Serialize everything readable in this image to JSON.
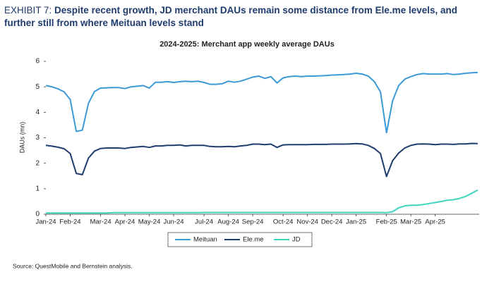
{
  "exhibit": "EXHIBIT 7:",
  "headline": "Despite recent growth, JD merchant DAUs remain some distance from Ele.me levels, and further still from where Meituan levels stand",
  "source": "Source: QuestMobile and Bernstein analysis.",
  "chart_data": {
    "type": "line",
    "title": "2024-2025: Merchant app weekly average DAUs",
    "y_label": "DAUs (mn)",
    "categories": [
      "Jan-24",
      null,
      null,
      null,
      "Feb-24",
      null,
      null,
      null,
      null,
      "Mar-24",
      null,
      null,
      null,
      "Apr-24",
      null,
      null,
      null,
      "May-24",
      null,
      null,
      null,
      "Jun-24",
      null,
      null,
      null,
      null,
      "Jul-24",
      null,
      null,
      null,
      "Aug-24",
      null,
      null,
      null,
      "Sep-24",
      null,
      null,
      null,
      null,
      "Oct-24",
      null,
      null,
      null,
      "Nov-24",
      null,
      null,
      null,
      "Dec-24",
      null,
      null,
      null,
      "Jan-25",
      null,
      null,
      null,
      null,
      "Feb-25",
      null,
      null,
      null,
      "Mar-25",
      null,
      null,
      null,
      "Apr-25",
      null,
      null,
      null,
      null,
      null,
      null,
      null
    ],
    "series": [
      {
        "name": "Meituan",
        "color": "#3a9ad6",
        "values": [
          5.05,
          5.0,
          4.92,
          4.8,
          4.5,
          3.25,
          3.3,
          4.35,
          4.82,
          4.95,
          4.96,
          4.97,
          4.97,
          4.93,
          5.0,
          5.02,
          5.05,
          4.95,
          5.18,
          5.18,
          5.2,
          5.17,
          5.2,
          5.22,
          5.2,
          5.22,
          5.17,
          5.1,
          5.1,
          5.12,
          5.22,
          5.18,
          5.22,
          5.3,
          5.38,
          5.42,
          5.33,
          5.4,
          5.15,
          5.35,
          5.4,
          5.42,
          5.4,
          5.42,
          5.42,
          5.43,
          5.44,
          5.46,
          5.47,
          5.48,
          5.5,
          5.53,
          5.5,
          5.42,
          5.2,
          4.8,
          3.2,
          4.45,
          5.05,
          5.3,
          5.4,
          5.48,
          5.52,
          5.5,
          5.5,
          5.5,
          5.52,
          5.48,
          5.5,
          5.53,
          5.55,
          5.56
        ]
      },
      {
        "name": "Ele.me",
        "color": "#1f3c6e",
        "values": [
          2.7,
          2.67,
          2.63,
          2.57,
          2.38,
          1.6,
          1.55,
          2.2,
          2.48,
          2.58,
          2.6,
          2.6,
          2.6,
          2.58,
          2.62,
          2.64,
          2.66,
          2.62,
          2.68,
          2.68,
          2.7,
          2.7,
          2.72,
          2.68,
          2.7,
          2.7,
          2.7,
          2.66,
          2.65,
          2.65,
          2.66,
          2.65,
          2.68,
          2.7,
          2.75,
          2.75,
          2.73,
          2.75,
          2.62,
          2.72,
          2.73,
          2.73,
          2.73,
          2.73,
          2.74,
          2.74,
          2.74,
          2.75,
          2.75,
          2.75,
          2.76,
          2.77,
          2.76,
          2.7,
          2.58,
          2.38,
          1.48,
          2.1,
          2.4,
          2.6,
          2.7,
          2.75,
          2.76,
          2.75,
          2.73,
          2.75,
          2.75,
          2.74,
          2.76,
          2.76,
          2.78,
          2.77
        ]
      },
      {
        "name": "JD",
        "color": "#3fd6c0",
        "values": [
          0.05,
          0.05,
          0.05,
          0.05,
          0.05,
          0.05,
          0.05,
          0.05,
          0.05,
          0.05,
          0.05,
          0.06,
          0.06,
          0.06,
          0.06,
          0.06,
          0.06,
          0.06,
          0.06,
          0.06,
          0.06,
          0.06,
          0.06,
          0.06,
          0.06,
          0.06,
          0.07,
          0.07,
          0.07,
          0.07,
          0.07,
          0.07,
          0.07,
          0.07,
          0.07,
          0.07,
          0.07,
          0.07,
          0.07,
          0.07,
          0.07,
          0.07,
          0.07,
          0.07,
          0.07,
          0.07,
          0.07,
          0.07,
          0.07,
          0.07,
          0.07,
          0.07,
          0.07,
          0.07,
          0.07,
          0.07,
          0.06,
          0.1,
          0.25,
          0.33,
          0.35,
          0.35,
          0.38,
          0.42,
          0.46,
          0.5,
          0.55,
          0.57,
          0.62,
          0.7,
          0.82,
          0.95
        ]
      }
    ],
    "ylim": [
      0,
      6
    ],
    "yticks": [
      0,
      1,
      2,
      3,
      4,
      5,
      6
    ],
    "legend": "bottom"
  }
}
